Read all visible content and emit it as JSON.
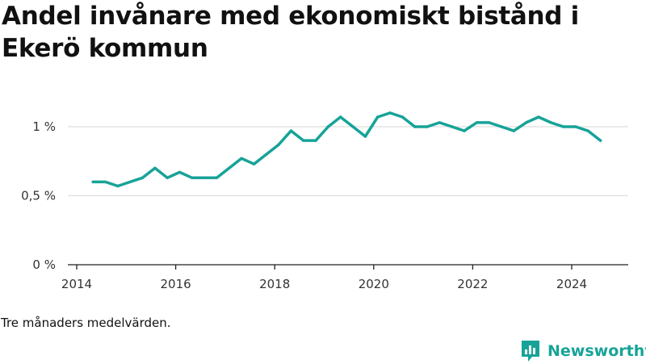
{
  "title": "Andel invånare med ekonomiskt bistånd i Ekerö kommun",
  "note": "Tre månaders medelvärden.",
  "brand": {
    "name": "Newsworthy",
    "icon": "bar-chart-icon",
    "color": "#17a398"
  },
  "chart_data": {
    "type": "line",
    "title": "Andel invånare med ekonomiskt bistånd i Ekerö kommun",
    "xlabel": "",
    "ylabel": "",
    "xlim": [
      2014,
      2025.1
    ],
    "ylim": [
      0,
      1.1
    ],
    "x_ticks": [
      2014,
      2016,
      2018,
      2020,
      2022,
      2024
    ],
    "x_tick_labels": [
      "2014",
      "2016",
      "2018",
      "2020",
      "2022",
      "2024"
    ],
    "y_ticks": [
      0,
      0.5,
      1
    ],
    "y_tick_labels": [
      "0 %",
      "0,5 %",
      "1 %"
    ],
    "grid": "horizontal",
    "series": [
      {
        "color": "#17a398",
        "points": [
          [
            2014.33,
            0.6
          ],
          [
            2014.58,
            0.6
          ],
          [
            2014.83,
            0.57
          ],
          [
            2015.08,
            0.6
          ],
          [
            2015.33,
            0.63
          ],
          [
            2015.58,
            0.7
          ],
          [
            2015.83,
            0.63
          ],
          [
            2016.08,
            0.67
          ],
          [
            2016.33,
            0.63
          ],
          [
            2016.58,
            0.63
          ],
          [
            2016.83,
            0.63
          ],
          [
            2017.08,
            0.7
          ],
          [
            2017.33,
            0.77
          ],
          [
            2017.58,
            0.73
          ],
          [
            2017.83,
            0.8
          ],
          [
            2018.08,
            0.87
          ],
          [
            2018.33,
            0.97
          ],
          [
            2018.58,
            0.9
          ],
          [
            2018.83,
            0.9
          ],
          [
            2019.08,
            1.0
          ],
          [
            2019.33,
            1.07
          ],
          [
            2019.58,
            1.0
          ],
          [
            2019.83,
            0.93
          ],
          [
            2020.08,
            1.07
          ],
          [
            2020.33,
            1.1
          ],
          [
            2020.58,
            1.07
          ],
          [
            2020.83,
            1.0
          ],
          [
            2021.08,
            1.0
          ],
          [
            2021.33,
            1.03
          ],
          [
            2021.58,
            1.0
          ],
          [
            2021.83,
            0.97
          ],
          [
            2022.08,
            1.03
          ],
          [
            2022.33,
            1.03
          ],
          [
            2022.58,
            1.0
          ],
          [
            2022.83,
            0.97
          ],
          [
            2023.08,
            1.03
          ],
          [
            2023.33,
            1.07
          ],
          [
            2023.58,
            1.03
          ],
          [
            2023.83,
            1.0
          ],
          [
            2024.08,
            1.0
          ],
          [
            2024.33,
            0.97
          ],
          [
            2024.58,
            0.9
          ]
        ]
      }
    ]
  }
}
